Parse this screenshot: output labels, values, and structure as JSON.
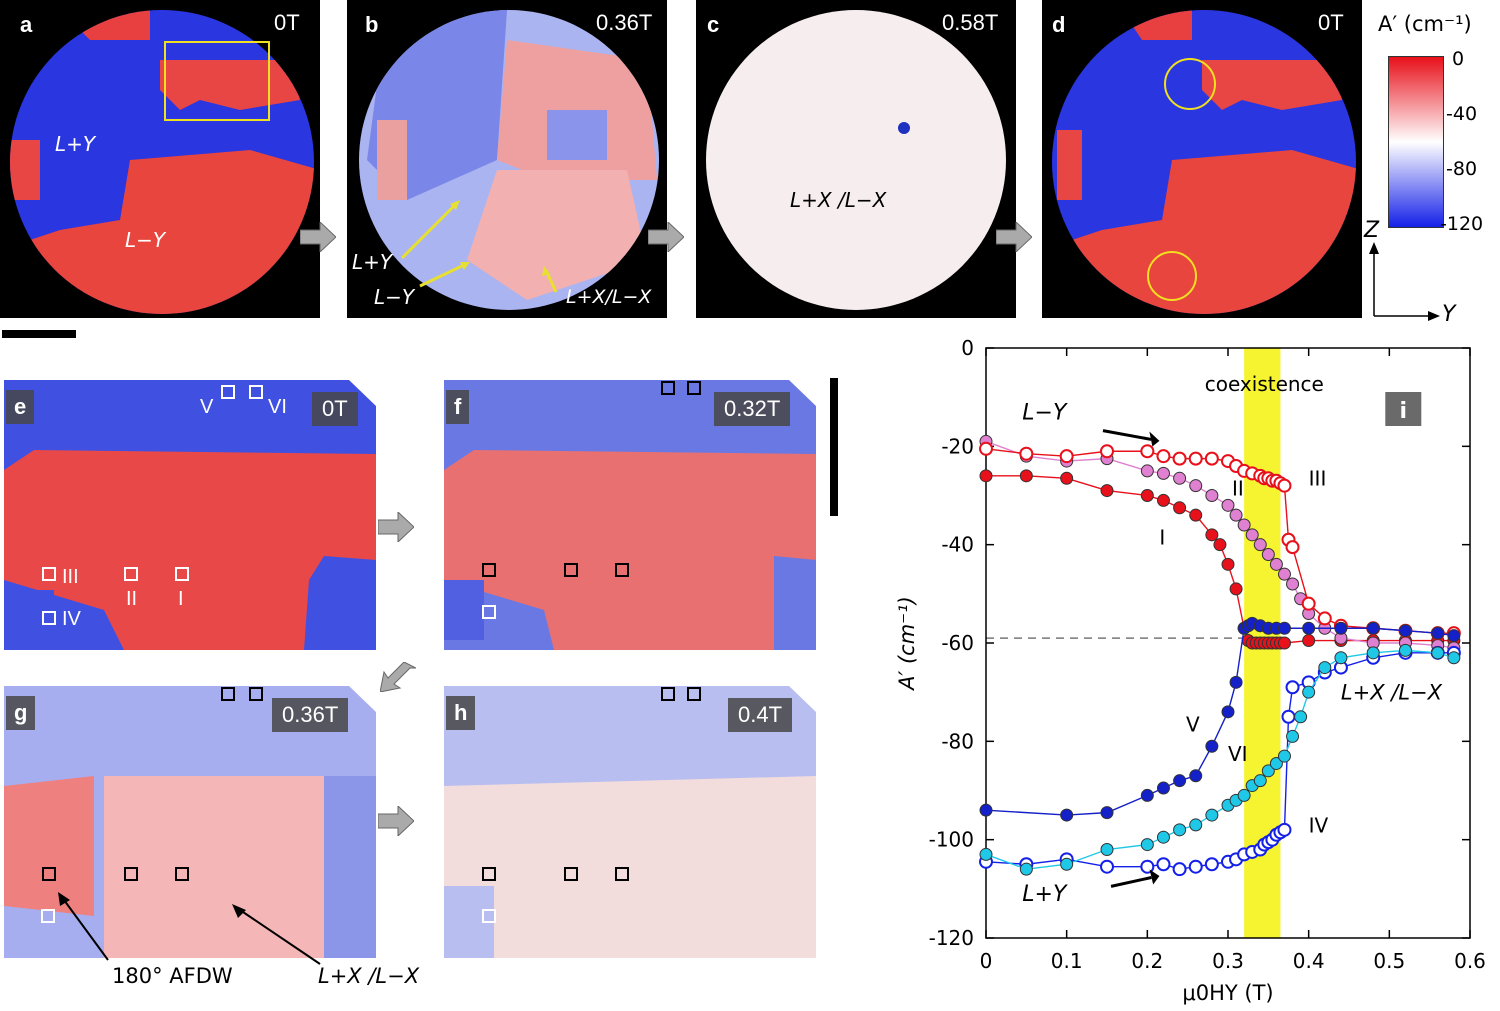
{
  "top_panels": [
    {
      "letter": "a",
      "field": "0T"
    },
    {
      "letter": "b",
      "field": "0.36T"
    },
    {
      "letter": "c",
      "field": "0.58T"
    },
    {
      "letter": "d",
      "field": "0T"
    }
  ],
  "zoom_panels": [
    {
      "letter": "e",
      "field": "0T"
    },
    {
      "letter": "f",
      "field": "0.32T"
    },
    {
      "letter": "g",
      "field": "0.36T"
    },
    {
      "letter": "h",
      "field": "0.4T"
    }
  ],
  "colorbar": {
    "title": "A′ (cm⁻¹)",
    "ticks": [
      "0",
      "-40",
      "-80",
      "-120"
    ],
    "colors": {
      "top": "#e8101a",
      "mid": "#ffffff",
      "bottom": "#1420e8"
    }
  },
  "axes_label": {
    "z": "Z",
    "y": "Y"
  },
  "annotations": {
    "a_plusY": "L+Y",
    "a_minusY": "L−Y",
    "b_plusY": "L+Y",
    "b_minusY": "L−Y",
    "b_X": "L+X/L−X",
    "c_X": "L+X /L−X",
    "g_afdw": "180° AFDW",
    "g_X": "L+X /L−X",
    "roman_e": [
      "V",
      "VI",
      "III",
      "II",
      "I",
      "IV"
    ]
  },
  "chart_data": {
    "type": "line",
    "panel_letter": "i",
    "xlabel": "μ0HY (T)",
    "ylabel": "A′ (cm⁻¹)",
    "xlim": [
      0,
      0.6
    ],
    "ylim": [
      -120,
      0
    ],
    "xticks": [
      "0",
      "0.1",
      "0.2",
      "0.3",
      "0.4",
      "0.5",
      "0.6"
    ],
    "yticks": [
      "0",
      "-20",
      "-40",
      "-60",
      "-80",
      "-100",
      "-120"
    ],
    "coexistence_band": [
      0.32,
      0.365
    ],
    "coexistence_label": "coexistence",
    "dashed_level": -59,
    "labels": {
      "LminusY": "L−Y",
      "LplusY": "L+Y",
      "LX": "L+X /L−X"
    },
    "series": [
      {
        "name": "I",
        "color": "#e8101a",
        "filled": true,
        "x": [
          0,
          0.05,
          0.1,
          0.15,
          0.2,
          0.22,
          0.24,
          0.26,
          0.28,
          0.29,
          0.3,
          0.31,
          0.32,
          0.325,
          0.33,
          0.335,
          0.34,
          0.345,
          0.35,
          0.355,
          0.36,
          0.365,
          0.37,
          0.4,
          0.44,
          0.48,
          0.52,
          0.56,
          0.58
        ],
        "y": [
          -26,
          -26,
          -26.5,
          -29,
          -30,
          -31,
          -32.5,
          -34,
          -38,
          -40,
          -44,
          -49,
          -57,
          -59.5,
          -60,
          -60,
          -60,
          -60,
          -60,
          -60,
          -60,
          -60,
          -60,
          -59.5,
          -59.5,
          -59.5,
          -59.5,
          -59.5,
          -59.5
        ]
      },
      {
        "name": "II",
        "color": "#e080d0",
        "filled": true,
        "x": [
          0,
          0.05,
          0.1,
          0.15,
          0.2,
          0.22,
          0.24,
          0.26,
          0.28,
          0.3,
          0.31,
          0.32,
          0.33,
          0.34,
          0.35,
          0.36,
          0.37,
          0.38,
          0.39,
          0.4,
          0.42,
          0.44,
          0.48,
          0.52,
          0.56,
          0.58
        ],
        "y": [
          -19,
          -22,
          -23,
          -22.5,
          -25,
          -25.5,
          -26.5,
          -28,
          -30,
          -32,
          -34,
          -36,
          -38,
          -40,
          -42,
          -44,
          -46,
          -48,
          -51,
          -54,
          -57,
          -59,
          -60,
          -60,
          -60.5,
          -61
        ]
      },
      {
        "name": "III",
        "color": "#e8101a",
        "filled": false,
        "x": [
          0,
          0.05,
          0.1,
          0.15,
          0.2,
          0.22,
          0.24,
          0.26,
          0.28,
          0.3,
          0.31,
          0.32,
          0.33,
          0.34,
          0.345,
          0.35,
          0.355,
          0.36,
          0.365,
          0.37,
          0.375,
          0.38,
          0.4,
          0.42,
          0.44,
          0.48,
          0.52,
          0.56,
          0.58
        ],
        "y": [
          -20.5,
          -21.5,
          -22,
          -21,
          -21,
          -22,
          -22.5,
          -22.5,
          -22.5,
          -23,
          -24,
          -25,
          -25.5,
          -26,
          -26.5,
          -26.5,
          -27,
          -27,
          -27.5,
          -28,
          -39,
          -40.5,
          -52,
          -55,
          -56.5,
          -57,
          -57.5,
          -58,
          -58
        ]
      },
      {
        "name": "IV",
        "color": "#1420e8",
        "filled": false,
        "x": [
          0,
          0.05,
          0.1,
          0.15,
          0.2,
          0.22,
          0.24,
          0.26,
          0.28,
          0.3,
          0.31,
          0.32,
          0.33,
          0.34,
          0.345,
          0.35,
          0.355,
          0.36,
          0.365,
          0.37,
          0.375,
          0.38,
          0.4,
          0.42,
          0.44,
          0.48,
          0.52,
          0.56,
          0.58
        ],
        "y": [
          -104.5,
          -105,
          -104,
          -105.5,
          -105.5,
          -105,
          -106,
          -105.5,
          -105,
          -104.5,
          -104,
          -103,
          -102.5,
          -102,
          -101,
          -100.5,
          -100,
          -99,
          -98.5,
          -98,
          -75,
          -69,
          -68,
          -66,
          -65,
          -63,
          -62,
          -62,
          -62
        ]
      },
      {
        "name": "V",
        "color": "#1420c8",
        "filled": true,
        "x": [
          0,
          0.1,
          0.15,
          0.2,
          0.22,
          0.24,
          0.26,
          0.28,
          0.3,
          0.31,
          0.32,
          0.325,
          0.33,
          0.34,
          0.35,
          0.36,
          0.37,
          0.4,
          0.44,
          0.48,
          0.52,
          0.56,
          0.58
        ],
        "y": [
          -94,
          -95,
          -94.5,
          -91,
          -89.5,
          -88,
          -87,
          -81,
          -74,
          -68,
          -57,
          -56.5,
          -56,
          -56.5,
          -57,
          -57,
          -57,
          -57,
          -57,
          -57,
          -57.5,
          -58,
          -58.5
        ]
      },
      {
        "name": "VI",
        "color": "#20c8e8",
        "filled": true,
        "x": [
          0,
          0.05,
          0.1,
          0.15,
          0.2,
          0.22,
          0.24,
          0.26,
          0.28,
          0.3,
          0.31,
          0.32,
          0.33,
          0.34,
          0.35,
          0.36,
          0.37,
          0.38,
          0.39,
          0.4,
          0.42,
          0.44,
          0.48,
          0.52,
          0.56,
          0.58
        ],
        "y": [
          -103,
          -106,
          -105,
          -102,
          -101,
          -99.5,
          -98,
          -97,
          -95,
          -93,
          -92,
          -91,
          -89,
          -88,
          -86,
          -84.5,
          -83,
          -79,
          -75,
          -70,
          -65,
          -63,
          -62,
          -61.5,
          -62,
          -63
        ]
      }
    ],
    "roman_labels": [
      "I",
      "II",
      "III",
      "IV",
      "V",
      "VI"
    ]
  }
}
